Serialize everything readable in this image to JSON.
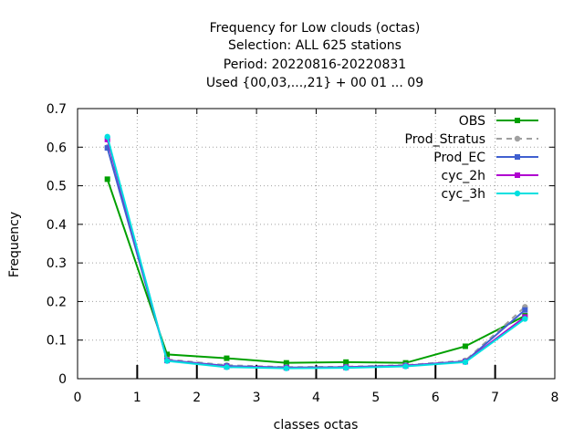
{
  "chart_data": {
    "type": "line",
    "title_lines": [
      "Frequency  for Low clouds (octas)",
      "Selection: ALL    625 stations",
      "Period: 20220816-20220831",
      "Used {00,03,...,21} + 00 01 ... 09"
    ],
    "xlabel": "classes octas",
    "ylabel": "Frequency",
    "xlim": [
      0,
      8
    ],
    "ylim": [
      0,
      0.7
    ],
    "xticks": [
      "0",
      "1",
      "2",
      "3",
      "4",
      "5",
      "6",
      "7",
      "8"
    ],
    "yticks": [
      "0",
      "0.1",
      "0.2",
      "0.3",
      "0.4",
      "0.5",
      "0.6",
      "0.7"
    ],
    "grid": true,
    "legend_position": "top-right",
    "x": [
      0.5,
      1.5,
      2.5,
      3.5,
      4.5,
      5.5,
      6.5,
      7.5
    ],
    "series": [
      {
        "name": "OBS",
        "color": "#00a000",
        "dashed": false,
        "marker": "square",
        "values": [
          0.517,
          0.063,
          0.053,
          0.041,
          0.043,
          0.041,
          0.084,
          0.163
        ]
      },
      {
        "name": "Prod_Stratus",
        "color": "#a0a0a0",
        "dashed": true,
        "marker": "circle",
        "values": [
          0.6,
          0.05,
          0.035,
          0.03,
          0.031,
          0.035,
          0.047,
          0.186
        ]
      },
      {
        "name": "Prod_EC",
        "color": "#4060d0",
        "dashed": false,
        "marker": "square",
        "values": [
          0.598,
          0.048,
          0.033,
          0.029,
          0.03,
          0.034,
          0.045,
          0.178
        ]
      },
      {
        "name": "cyc_2h",
        "color": "#b000d0",
        "dashed": false,
        "marker": "square",
        "values": [
          0.62,
          0.047,
          0.031,
          0.028,
          0.029,
          0.033,
          0.044,
          0.16
        ]
      },
      {
        "name": "cyc_3h",
        "color": "#00e0e0",
        "dashed": false,
        "marker": "circle",
        "values": [
          0.627,
          0.046,
          0.03,
          0.027,
          0.028,
          0.032,
          0.043,
          0.155
        ]
      }
    ]
  }
}
